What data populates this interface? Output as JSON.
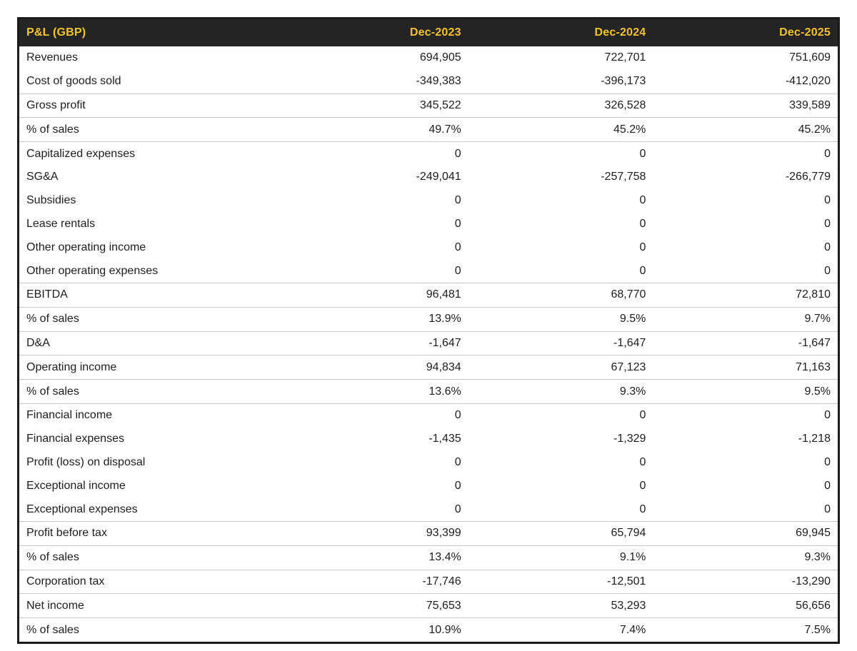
{
  "chart_data": {
    "type": "table",
    "title": "P&L (GBP)",
    "columns": [
      "Dec-2023",
      "Dec-2024",
      "Dec-2025"
    ],
    "rows": [
      {
        "label": "Revenues",
        "values": [
          "694,905",
          "722,701",
          "751,609"
        ],
        "emphasis": false
      },
      {
        "label": "Cost of goods sold",
        "values": [
          "-349,383",
          "-396,173",
          "-412,020"
        ],
        "emphasis": false
      },
      {
        "label": "Gross profit",
        "values": [
          "345,522",
          "326,528",
          "339,589"
        ],
        "emphasis": true
      },
      {
        "label": "% of sales",
        "values": [
          "49.7%",
          "45.2%",
          "45.2%"
        ],
        "emphasis": true
      },
      {
        "label": "Capitalized expenses",
        "values": [
          "0",
          "0",
          "0"
        ],
        "emphasis": false
      },
      {
        "label": "SG&A",
        "values": [
          "-249,041",
          "-257,758",
          "-266,779"
        ],
        "emphasis": false
      },
      {
        "label": "Subsidies",
        "values": [
          "0",
          "0",
          "0"
        ],
        "emphasis": false
      },
      {
        "label": "Lease rentals",
        "values": [
          "0",
          "0",
          "0"
        ],
        "emphasis": false
      },
      {
        "label": "Other operating income",
        "values": [
          "0",
          "0",
          "0"
        ],
        "emphasis": false
      },
      {
        "label": "Other operating expenses",
        "values": [
          "0",
          "0",
          "0"
        ],
        "emphasis": false
      },
      {
        "label": "EBITDA",
        "values": [
          "96,481",
          "68,770",
          "72,810"
        ],
        "emphasis": true
      },
      {
        "label": "% of sales",
        "values": [
          "13.9%",
          "9.5%",
          "9.7%"
        ],
        "emphasis": true
      },
      {
        "label": "D&A",
        "values": [
          "-1,647",
          "-1,647",
          "-1,647"
        ],
        "emphasis": false
      },
      {
        "label": "Operating income",
        "values": [
          "94,834",
          "67,123",
          "71,163"
        ],
        "emphasis": true
      },
      {
        "label": "% of sales",
        "values": [
          "13.6%",
          "9.3%",
          "9.5%"
        ],
        "emphasis": true
      },
      {
        "label": "Financial income",
        "values": [
          "0",
          "0",
          "0"
        ],
        "emphasis": false
      },
      {
        "label": "Financial expenses",
        "values": [
          "-1,435",
          "-1,329",
          "-1,218"
        ],
        "emphasis": false
      },
      {
        "label": "Profit (loss) on disposal",
        "values": [
          "0",
          "0",
          "0"
        ],
        "emphasis": false
      },
      {
        "label": "Exceptional income",
        "values": [
          "0",
          "0",
          "0"
        ],
        "emphasis": false
      },
      {
        "label": "Exceptional expenses",
        "values": [
          "0",
          "0",
          "0"
        ],
        "emphasis": false
      },
      {
        "label": "Profit before tax",
        "values": [
          "93,399",
          "65,794",
          "69,945"
        ],
        "emphasis": true
      },
      {
        "label": "% of sales",
        "values": [
          "13.4%",
          "9.1%",
          "9.3%"
        ],
        "emphasis": true
      },
      {
        "label": "Corporation tax",
        "values": [
          "-17,746",
          "-12,501",
          "-13,290"
        ],
        "emphasis": false
      },
      {
        "label": "Net income",
        "values": [
          "75,653",
          "53,293",
          "56,656"
        ],
        "emphasis": true
      },
      {
        "label": "% of sales",
        "values": [
          "10.9%",
          "7.4%",
          "7.5%"
        ],
        "emphasis": true
      }
    ],
    "layout_hints": {
      "value_alignment": "right",
      "emphasis_rows_background": true
    }
  },
  "colors": {
    "header_bg": "#242424",
    "header_text": "#f2c230",
    "emphasis_row_bg": "#e0e0e0",
    "body_text": "#1d1d1d",
    "table_border": "#1b1b1b"
  }
}
